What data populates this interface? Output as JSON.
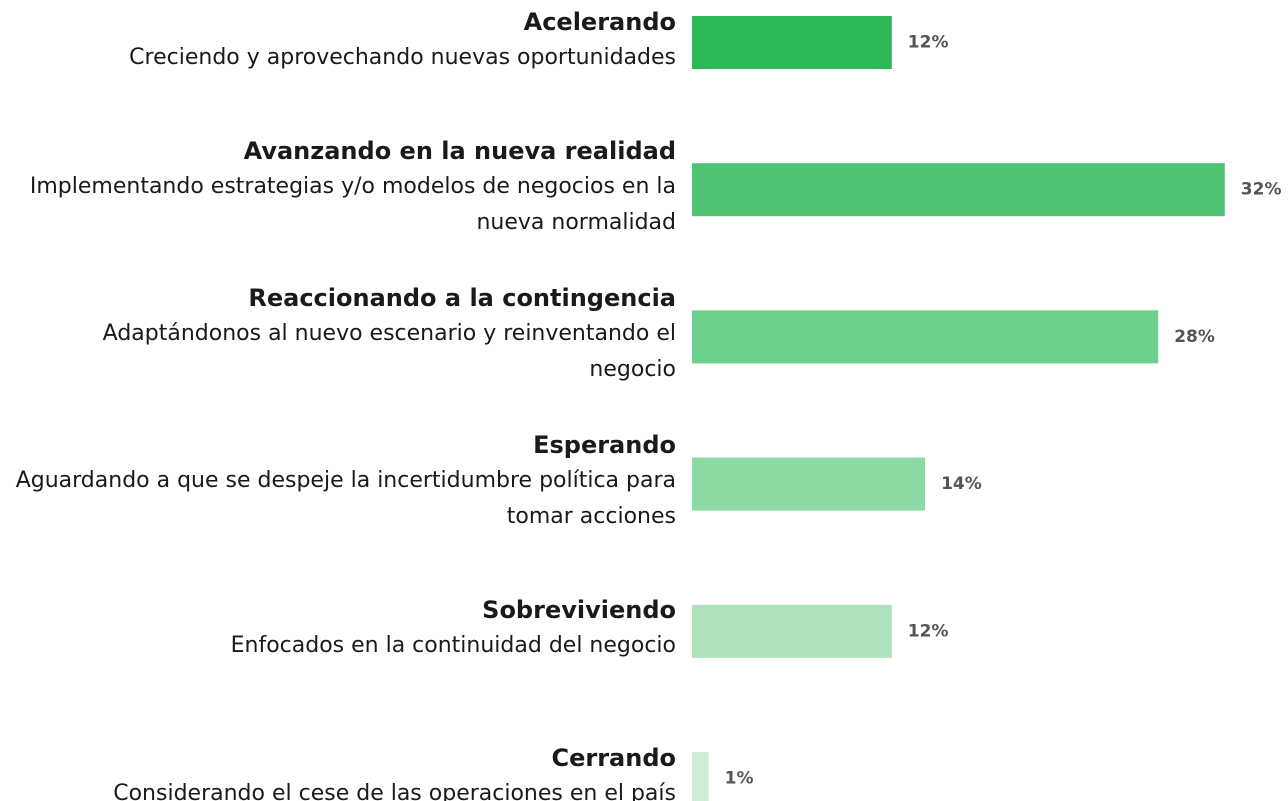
{
  "chart_data": {
    "type": "bar",
    "orientation": "horizontal",
    "categories": [
      "Acelerando",
      "Avanzando en la nueva realidad",
      "Reaccionando a la contingencia",
      "Esperando",
      "Sobreviviendo",
      "Cerrando"
    ],
    "descriptions": [
      "Creciendo y aprovechando nuevas oportunidades",
      "Implementando estrategias y/o modelos de negocios en la nueva normalidad",
      "Adaptándonos al nuevo escenario y reinventando el negocio",
      "Aguardando a que se despeje la incertidumbre política para tomar acciones",
      "Enfocados en la continuidad del negocio",
      "Considerando el cese de las operaciones en el país"
    ],
    "values": [
      12,
      32,
      28,
      14,
      12,
      1
    ],
    "value_labels": [
      "12%",
      "32%",
      "28%",
      "14%",
      "12%",
      "1%"
    ],
    "colors": [
      "#2db757",
      "#4ec472",
      "#6ccf8a",
      "#8cd9a3",
      "#abe2bc",
      "#cdeed7"
    ]
  }
}
